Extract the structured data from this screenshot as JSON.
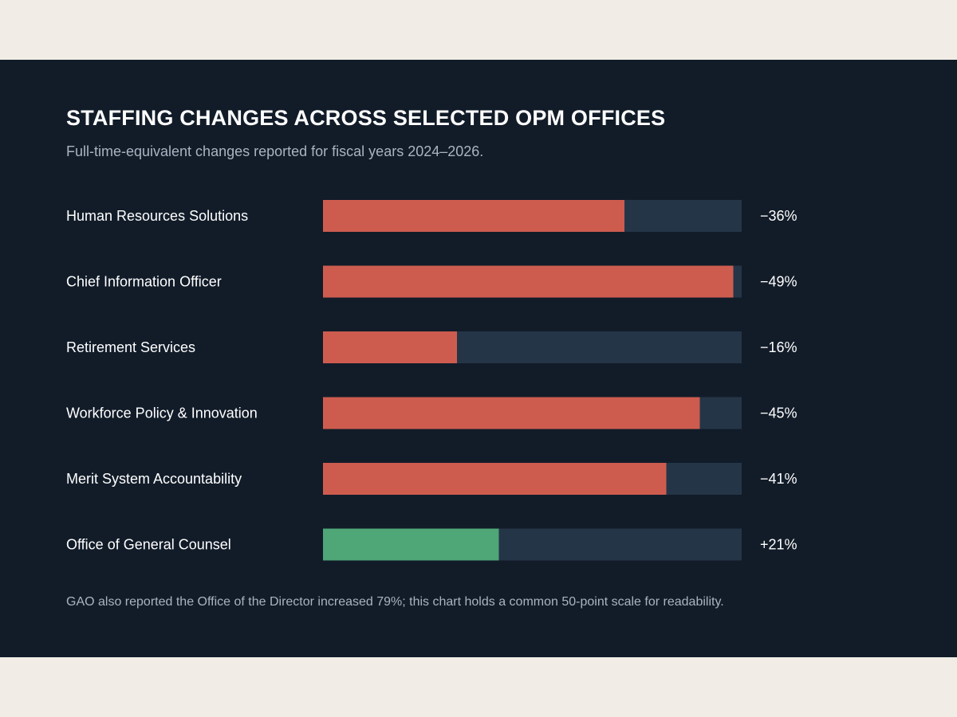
{
  "header": {
    "title": "STAFFING CHANGES ACROSS SELECTED OPM OFFICES",
    "subtitle": "Full-time-equivalent changes reported for fiscal years 2024–2026."
  },
  "footnote": "GAO also reported the Office of the Director increased 79%; this chart holds a common 50-point scale for readability.",
  "colors": {
    "decrease": "#cd5c4f",
    "increase": "#4fa677",
    "track": "#253548",
    "background": "#121c29",
    "page": "#f1ede6"
  },
  "chart_data": {
    "type": "bar",
    "orientation": "horizontal",
    "title": "STAFFING CHANGES ACROSS SELECTED OPM OFFICES",
    "subtitle": "Full-time-equivalent changes reported for fiscal years 2024–2026.",
    "categories": [
      "Human Resources Solutions",
      "Chief Information Officer",
      "Retirement Services",
      "Workforce Policy & Innovation",
      "Merit System Accountability",
      "Office of General Counsel"
    ],
    "values": [
      -36,
      -49,
      -16,
      -45,
      -41,
      21
    ],
    "value_labels": [
      "−36%",
      "−49%",
      "−16%",
      "−45%",
      "−41%",
      "+21%"
    ],
    "scale_max": 50,
    "unit": "%",
    "grid": false,
    "legend": "none"
  }
}
